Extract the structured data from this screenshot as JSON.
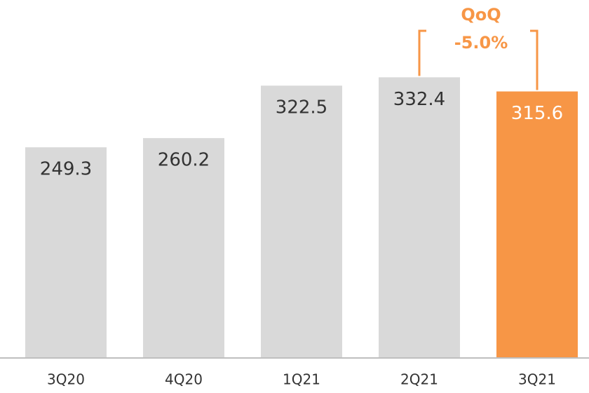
{
  "chart_data": {
    "type": "bar",
    "categories": [
      "3Q20",
      "4Q20",
      "1Q21",
      "2Q21",
      "3Q21"
    ],
    "values": [
      249.3,
      260.2,
      322.5,
      332.4,
      315.6
    ],
    "colors": [
      "#d9d9d9",
      "#d9d9d9",
      "#d9d9d9",
      "#d9d9d9",
      "#f79646"
    ],
    "ylim": [
      0,
      420
    ],
    "annotation": {
      "title": "QoQ",
      "text": "-5.0%",
      "color": "#f79646"
    }
  }
}
